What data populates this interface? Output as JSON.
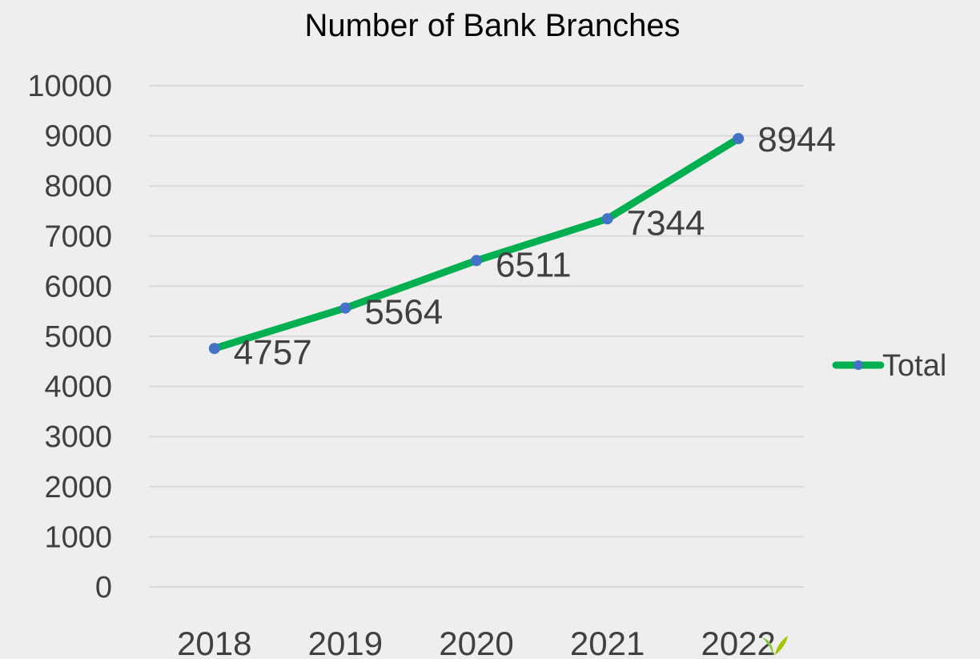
{
  "chart_data": {
    "type": "line",
    "title": "Number of Bank Branches",
    "categories": [
      "2018",
      "2019",
      "2020",
      "2021",
      "2022"
    ],
    "series": [
      {
        "name": "Total",
        "values": [
          4757,
          5564,
          6511,
          7344,
          8944
        ]
      }
    ],
    "ylim": [
      0,
      10000
    ],
    "yticks": [
      "0",
      "1000",
      "2000",
      "3000",
      "4000",
      "5000",
      "6000",
      "7000",
      "8000",
      "9000",
      "10000"
    ],
    "grid": true,
    "legend": "right",
    "colors": {
      "line": "#00b050",
      "marker": "#4472c4"
    }
  }
}
